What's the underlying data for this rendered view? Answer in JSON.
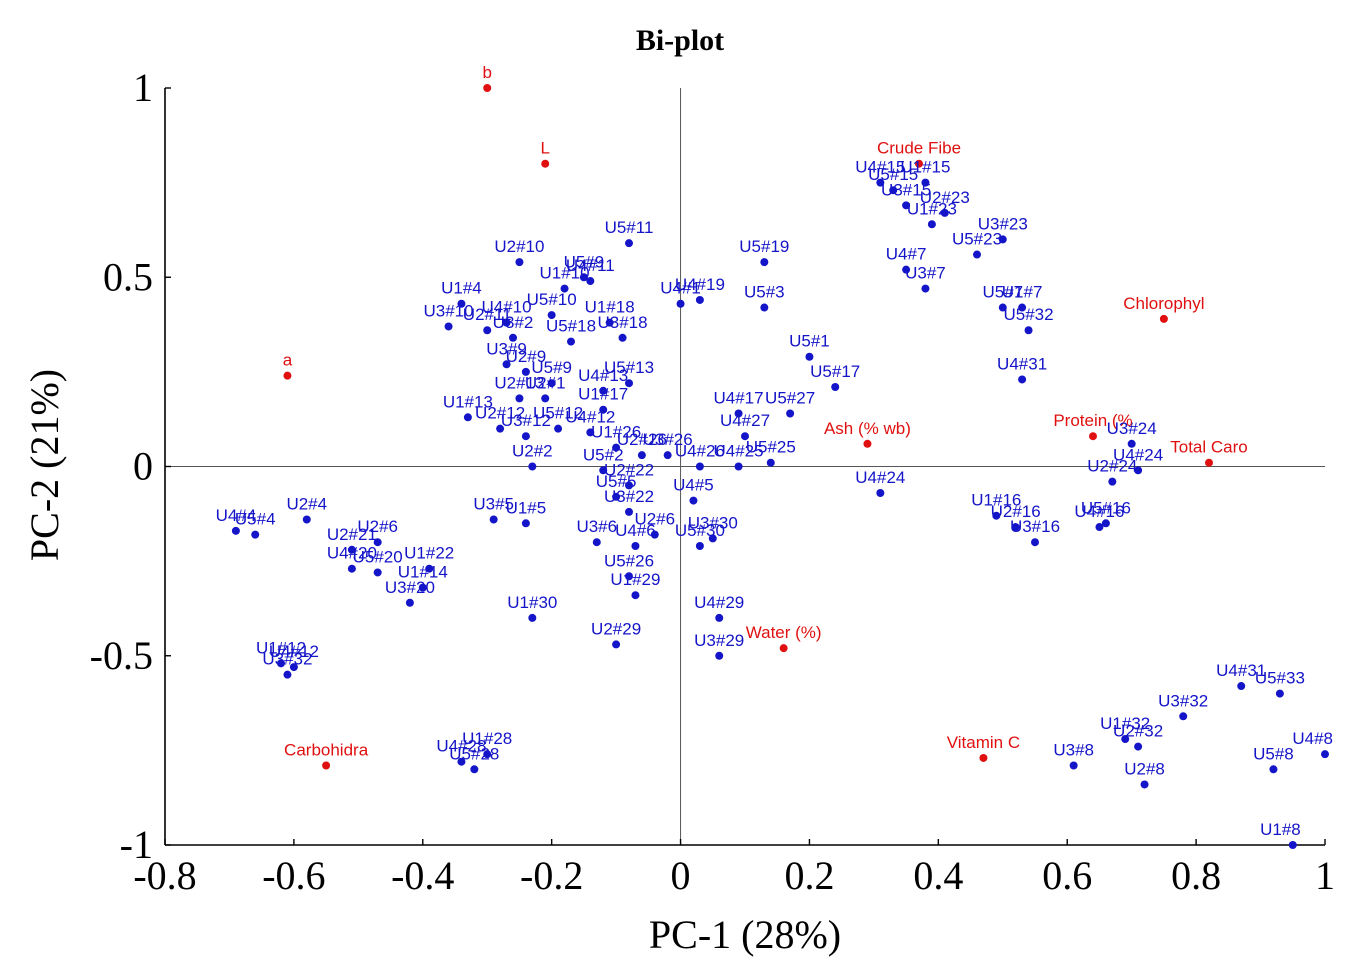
{
  "chart_data": {
    "type": "scatter",
    "title": "Bi-plot",
    "xlabel": "PC-1 (28%)",
    "ylabel": "PC-2 (21%)",
    "xlim": [
      -0.8,
      1.0
    ],
    "ylim": [
      -1.0,
      1.0
    ],
    "xticks": [
      -0.8,
      -0.6,
      -0.4,
      -0.2,
      0,
      0.2,
      0.4,
      0.6,
      0.8,
      1
    ],
    "yticks": [
      -1,
      -0.5,
      0,
      0.5,
      1
    ],
    "xtick_labels": [
      "-0.8",
      "-0.6",
      "-0.4",
      "-0.2",
      "0",
      "0.2",
      "0.4",
      "0.6",
      "0.8",
      "1"
    ],
    "ytick_labels": [
      "-1",
      "-0.5",
      "0",
      "0.5",
      "1"
    ],
    "grid": false,
    "colors": {
      "observations": "#1414c8",
      "variables": "#e01010"
    },
    "series": [
      {
        "points": [
          {
            "label": "b",
            "x": -0.3,
            "y": 1.0
          },
          {
            "label": "L",
            "x": -0.21,
            "y": 0.8
          },
          {
            "label": "Crude Fibe",
            "x": 0.37,
            "y": 0.8
          },
          {
            "label": "Chlorophyl",
            "x": 0.75,
            "y": 0.39
          },
          {
            "label": "a",
            "x": -0.61,
            "y": 0.24
          },
          {
            "label": "Ash (% wb)",
            "x": 0.29,
            "y": 0.06
          },
          {
            "label": "Protein (%",
            "x": 0.64,
            "y": 0.08
          },
          {
            "label": "Total Caro",
            "x": 0.82,
            "y": 0.01
          },
          {
            "label": "Water (%)",
            "x": 0.16,
            "y": -0.48
          },
          {
            "label": "Vitamin C",
            "x": 0.47,
            "y": -0.77
          },
          {
            "label": "Carbohidra",
            "x": -0.55,
            "y": -0.79
          }
        ]
      },
      {
        "points": [
          {
            "label": "U4#15",
            "x": 0.31,
            "y": 0.75
          },
          {
            "label": "U1#15",
            "x": 0.38,
            "y": 0.75
          },
          {
            "label": "U5#15",
            "x": 0.33,
            "y": 0.73
          },
          {
            "label": "U3#15",
            "x": 0.35,
            "y": 0.69
          },
          {
            "label": "U2#23",
            "x": 0.41,
            "y": 0.67
          },
          {
            "label": "U3#23",
            "x": 0.5,
            "y": 0.6
          },
          {
            "label": "U1#23",
            "x": 0.39,
            "y": 0.64
          },
          {
            "label": "U5#23",
            "x": 0.46,
            "y": 0.56
          },
          {
            "label": "U4#7",
            "x": 0.35,
            "y": 0.52
          },
          {
            "label": "U3#7",
            "x": 0.38,
            "y": 0.47
          },
          {
            "label": "U5#7",
            "x": 0.5,
            "y": 0.42
          },
          {
            "label": "U1#7",
            "x": 0.53,
            "y": 0.42
          },
          {
            "label": "U5#32",
            "x": 0.54,
            "y": 0.36
          },
          {
            "label": "U4#31",
            "x": 0.53,
            "y": 0.23
          },
          {
            "label": "U3#24",
            "x": 0.7,
            "y": 0.06
          },
          {
            "label": "U4#24",
            "x": 0.71,
            "y": -0.01
          },
          {
            "label": "U2#24",
            "x": 0.67,
            "y": -0.04
          },
          {
            "label": "U1#16",
            "x": 0.49,
            "y": -0.13
          },
          {
            "label": "U2#16",
            "x": 0.52,
            "y": -0.16
          },
          {
            "label": "U3#16",
            "x": 0.55,
            "y": -0.2
          },
          {
            "label": "U4#16",
            "x": 0.65,
            "y": -0.16
          },
          {
            "label": "U5#16",
            "x": 0.66,
            "y": -0.15
          },
          {
            "label": "U4#24",
            "x": 0.31,
            "y": -0.07
          },
          {
            "label": "U5#19",
            "x": 0.13,
            "y": 0.54
          },
          {
            "label": "U5#3",
            "x": 0.13,
            "y": 0.42
          },
          {
            "label": "U5#1",
            "x": 0.2,
            "y": 0.29
          },
          {
            "label": "U5#17",
            "x": 0.24,
            "y": 0.21
          },
          {
            "label": "U5#27",
            "x": 0.17,
            "y": 0.14
          },
          {
            "label": "U4#17",
            "x": 0.09,
            "y": 0.14
          },
          {
            "label": "U4#27",
            "x": 0.1,
            "y": 0.08
          },
          {
            "label": "U5#25",
            "x": 0.14,
            "y": 0.01
          },
          {
            "label": "U4#25",
            "x": 0.09,
            "y": 0.0
          },
          {
            "label": "U4#26",
            "x": 0.03,
            "y": 0.0
          },
          {
            "label": "U3#26",
            "x": -0.02,
            "y": 0.03
          },
          {
            "label": "U4#1",
            "x": 0.0,
            "y": 0.43
          },
          {
            "label": "U4#19",
            "x": 0.03,
            "y": 0.44
          },
          {
            "label": "U5#11",
            "x": -0.08,
            "y": 0.59
          },
          {
            "label": "U5#9",
            "x": -0.15,
            "y": 0.5
          },
          {
            "label": "U4#11",
            "x": -0.14,
            "y": 0.49
          },
          {
            "label": "U2#10",
            "x": -0.25,
            "y": 0.54
          },
          {
            "label": "U1#10",
            "x": -0.18,
            "y": 0.47
          },
          {
            "label": "U3#10",
            "x": -0.36,
            "y": 0.37
          },
          {
            "label": "U1#4",
            "x": -0.34,
            "y": 0.43
          },
          {
            "label": "U4#10",
            "x": -0.27,
            "y": 0.38
          },
          {
            "label": "U2#11",
            "x": -0.3,
            "y": 0.36
          },
          {
            "label": "U3#2",
            "x": -0.26,
            "y": 0.34
          },
          {
            "label": "U5#10",
            "x": -0.2,
            "y": 0.4
          },
          {
            "label": "U1#18",
            "x": -0.11,
            "y": 0.38
          },
          {
            "label": "U3#18",
            "x": -0.09,
            "y": 0.34
          },
          {
            "label": "U5#18",
            "x": -0.17,
            "y": 0.33
          },
          {
            "label": "U3#9",
            "x": -0.27,
            "y": 0.27
          },
          {
            "label": "U2#9",
            "x": -0.24,
            "y": 0.25
          },
          {
            "label": "U5#9",
            "x": -0.2,
            "y": 0.22
          },
          {
            "label": "U5#13",
            "x": -0.08,
            "y": 0.22
          },
          {
            "label": "U4#13",
            "x": -0.12,
            "y": 0.2
          },
          {
            "label": "U1#13",
            "x": -0.33,
            "y": 0.13
          },
          {
            "label": "U2#13",
            "x": -0.25,
            "y": 0.18
          },
          {
            "label": "U2#1",
            "x": -0.21,
            "y": 0.18
          },
          {
            "label": "U1#17",
            "x": -0.12,
            "y": 0.15
          },
          {
            "label": "U2#12",
            "x": -0.28,
            "y": 0.1
          },
          {
            "label": "U3#12",
            "x": -0.24,
            "y": 0.08
          },
          {
            "label": "U5#12",
            "x": -0.19,
            "y": 0.1
          },
          {
            "label": "U4#12",
            "x": -0.14,
            "y": 0.09
          },
          {
            "label": "U1#26",
            "x": -0.1,
            "y": 0.05
          },
          {
            "label": "U2#26",
            "x": -0.06,
            "y": 0.03
          },
          {
            "label": "U2#2",
            "x": -0.23,
            "y": 0.0
          },
          {
            "label": "U5#2",
            "x": -0.12,
            "y": -0.01
          },
          {
            "label": "U2#22",
            "x": -0.08,
            "y": -0.05
          },
          {
            "label": "U3#5",
            "x": -0.29,
            "y": -0.14
          },
          {
            "label": "U1#5",
            "x": -0.24,
            "y": -0.15
          },
          {
            "label": "U5#5",
            "x": -0.1,
            "y": -0.08
          },
          {
            "label": "U3#22",
            "x": -0.08,
            "y": -0.12
          },
          {
            "label": "U4#5",
            "x": 0.02,
            "y": -0.09
          },
          {
            "label": "U3#6",
            "x": -0.13,
            "y": -0.2
          },
          {
            "label": "U4#6",
            "x": -0.07,
            "y": -0.21
          },
          {
            "label": "U2#6",
            "x": -0.04,
            "y": -0.18
          },
          {
            "label": "U3#30",
            "x": 0.05,
            "y": -0.19
          },
          {
            "label": "U5#30",
            "x": 0.03,
            "y": -0.21
          },
          {
            "label": "U5#26",
            "x": -0.08,
            "y": -0.29
          },
          {
            "label": "U1#29",
            "x": -0.07,
            "y": -0.34
          },
          {
            "label": "U1#30",
            "x": -0.23,
            "y": -0.4
          },
          {
            "label": "U2#29",
            "x": -0.1,
            "y": -0.47
          },
          {
            "label": "U4#29",
            "x": 0.06,
            "y": -0.4
          },
          {
            "label": "U3#29",
            "x": 0.06,
            "y": -0.5
          },
          {
            "label": "U4#4",
            "x": -0.69,
            "y": -0.17
          },
          {
            "label": "U5#4",
            "x": -0.66,
            "y": -0.18
          },
          {
            "label": "U2#4",
            "x": -0.58,
            "y": -0.14
          },
          {
            "label": "U2#21",
            "x": -0.51,
            "y": -0.22
          },
          {
            "label": "U2#6",
            "x": -0.47,
            "y": -0.2
          },
          {
            "label": "U4#20",
            "x": -0.51,
            "y": -0.27
          },
          {
            "label": "U5#20",
            "x": -0.47,
            "y": -0.28
          },
          {
            "label": "U1#22",
            "x": -0.39,
            "y": -0.27
          },
          {
            "label": "U1#14",
            "x": -0.4,
            "y": -0.32
          },
          {
            "label": "U3#20",
            "x": -0.42,
            "y": -0.36
          },
          {
            "label": "U1#12",
            "x": -0.62,
            "y": -0.52
          },
          {
            "label": "U4#12",
            "x": -0.6,
            "y": -0.53
          },
          {
            "label": "U3#32",
            "x": -0.61,
            "y": -0.55
          },
          {
            "label": "U1#28",
            "x": -0.3,
            "y": -0.76
          },
          {
            "label": "U4#28",
            "x": -0.34,
            "y": -0.78
          },
          {
            "label": "U5#28",
            "x": -0.32,
            "y": -0.8
          },
          {
            "label": "U4#31",
            "x": 0.87,
            "y": -0.58
          },
          {
            "label": "U5#33",
            "x": 0.93,
            "y": -0.6
          },
          {
            "label": "U3#32",
            "x": 0.78,
            "y": -0.66
          },
          {
            "label": "U1#32",
            "x": 0.69,
            "y": -0.72
          },
          {
            "label": "U2#32",
            "x": 0.71,
            "y": -0.74
          },
          {
            "label": "U3#8",
            "x": 0.61,
            "y": -0.79
          },
          {
            "label": "U2#8",
            "x": 0.72,
            "y": -0.84
          },
          {
            "label": "U4#8",
            "x": 1.0,
            "y": -0.76
          },
          {
            "label": "U5#8",
            "x": 0.92,
            "y": -0.8
          },
          {
            "label": "U1#8",
            "x": 0.95,
            "y": -1.0
          }
        ]
      }
    ]
  }
}
